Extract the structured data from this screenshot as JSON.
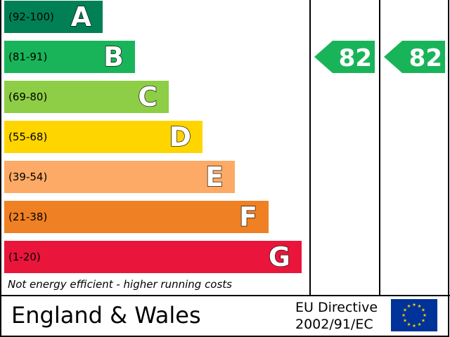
{
  "chart_data": {
    "type": "bar",
    "bands": [
      {
        "letter": "A",
        "range": "(92-100)",
        "color": "#008054"
      },
      {
        "letter": "B",
        "range": "(81-91)",
        "color": "#19b459"
      },
      {
        "letter": "C",
        "range": "(69-80)",
        "color": "#8dce46"
      },
      {
        "letter": "D",
        "range": "(55-68)",
        "color": "#ffd500"
      },
      {
        "letter": "E",
        "range": "(39-54)",
        "color": "#fcaa65"
      },
      {
        "letter": "F",
        "range": "(21-38)",
        "color": "#ef8023"
      },
      {
        "letter": "G",
        "range": "(1-20)",
        "color": "#e9153b"
      }
    ],
    "current_rating": 82,
    "potential_rating": 82,
    "rating_color": "#19b459",
    "footnote": "Not energy efficient - higher running costs"
  },
  "footer": {
    "region": "England & Wales",
    "directive_line1": "EU Directive",
    "directive_line2": "2002/91/EC"
  }
}
